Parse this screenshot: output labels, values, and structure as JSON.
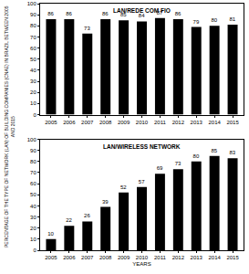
{
  "chart_data": [
    {
      "type": "bar",
      "title": "LAN/REDE COM FIO",
      "categories": [
        "2005",
        "2006",
        "2007",
        "2008",
        "2009",
        "2010",
        "2011",
        "2012",
        "2013",
        "2014",
        "2015"
      ],
      "values": [
        86,
        86,
        73,
        86,
        85,
        84,
        87,
        86,
        79,
        80,
        81
      ],
      "color": "#000000",
      "ylim": [
        0,
        100
      ],
      "yticks": [
        0,
        10,
        20,
        30,
        40,
        50,
        60,
        70,
        80,
        90,
        100
      ],
      "grid": false,
      "data_labels": true
    },
    {
      "type": "bar",
      "title": "LAN/WIRELESS NETWORK",
      "x_label": "YEARS",
      "y_label": "PERCENTAGE OF THE TYPE OF NETWORK (LAN) OF BUILDING COMPANIES (CNAE) IN BRAZIL BETWEEN 2005\nAND 2015",
      "categories": [
        "2005",
        "2006",
        "2007",
        "2008",
        "2009",
        "2010",
        "2011",
        "2012",
        "2013",
        "2014",
        "2015"
      ],
      "values": [
        10,
        22,
        26,
        39,
        52,
        57,
        69,
        73,
        80,
        85,
        83
      ],
      "color": "#000000",
      "ylim": [
        0,
        100
      ],
      "yticks": [
        0,
        10,
        20,
        30,
        40,
        50,
        60,
        70,
        80,
        90,
        100
      ],
      "grid": false,
      "data_labels": true
    }
  ]
}
